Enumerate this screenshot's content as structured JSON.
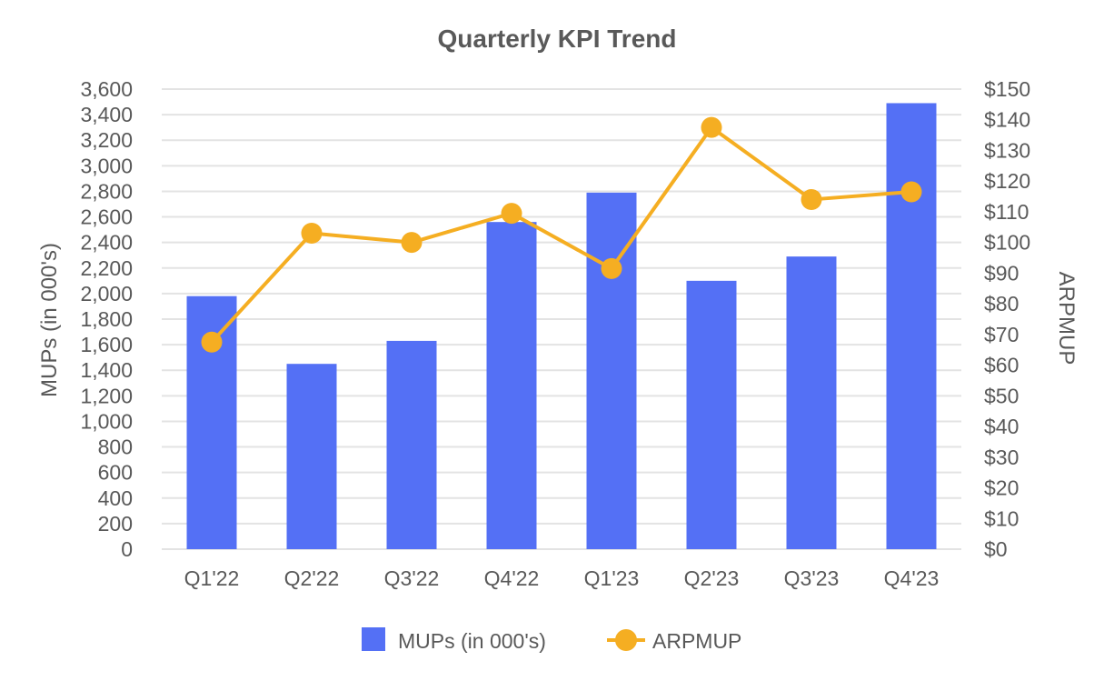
{
  "chart_data": {
    "type": "bar+line",
    "title": "Quarterly KPI Trend",
    "categories": [
      "Q1'22",
      "Q2'22",
      "Q3'22",
      "Q4'22",
      "Q1'23",
      "Q2'23",
      "Q3'23",
      "Q4'23"
    ],
    "series": [
      {
        "name": "MUPs (in 000's)",
        "type": "bar",
        "axis": "left",
        "color": "#5470f5",
        "values": [
          1980,
          1450,
          1630,
          2560,
          2790,
          2100,
          2290,
          3490
        ]
      },
      {
        "name": "ARPMUP",
        "type": "line",
        "axis": "right",
        "color": "#f5ae22",
        "values": [
          67.5,
          103,
          100,
          109.5,
          91.5,
          137.5,
          114,
          116.5
        ]
      }
    ],
    "y_left": {
      "label": "MUPs (in 000's)",
      "min": 0,
      "max": 3600,
      "ticks": [
        0,
        200,
        400,
        600,
        800,
        1000,
        1200,
        1400,
        1600,
        1800,
        2000,
        2200,
        2400,
        2600,
        2800,
        3000,
        3200,
        3400,
        3600
      ],
      "tick_labels": [
        "0",
        "200",
        "400",
        "600",
        "800",
        "1,000",
        "1,200",
        "1,400",
        "1,600",
        "1,800",
        "2,000",
        "2,200",
        "2,400",
        "2,600",
        "2,800",
        "3,000",
        "3,200",
        "3,400",
        "3,600"
      ]
    },
    "y_right": {
      "label": "ARPMUP",
      "min": 0,
      "max": 150,
      "ticks": [
        0,
        10,
        20,
        30,
        40,
        50,
        60,
        70,
        80,
        90,
        100,
        110,
        120,
        130,
        140,
        150
      ],
      "tick_labels": [
        "$0",
        "$10",
        "$20",
        "$30",
        "$40",
        "$50",
        "$60",
        "$70",
        "$80",
        "$90",
        "$100",
        "$110",
        "$120",
        "$130",
        "$140",
        "$150"
      ]
    },
    "grid": true,
    "legend": "bottom",
    "gridline_color": "#e3e3e3"
  }
}
